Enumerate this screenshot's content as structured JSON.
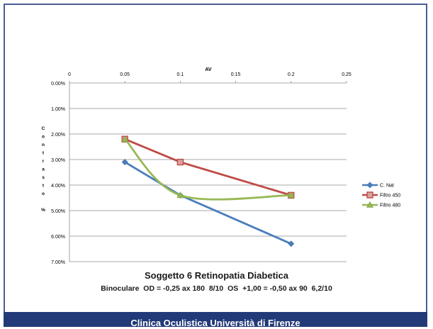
{
  "chart_data": {
    "type": "line",
    "title": "Soggetto 6  Retinopatia Diabetica",
    "subtitle": "Binoculare  OD = -0,25 ax 180  8/10  OS  +1,00 = -0,50 ax 90  6,2/10",
    "xlabel": "AV",
    "ylabel": "Contrasto %",
    "ylabel_letters": [
      "C",
      "o",
      "n",
      "t",
      "r",
      "a",
      "s",
      "t",
      "o",
      "",
      "%"
    ],
    "x_ticks": [
      "0",
      "0.05",
      "0.1",
      "0.15",
      "0.2",
      "0.25"
    ],
    "y_ticks": [
      "0.00%",
      "1.00%",
      "2.00%",
      "3.00%",
      "4.00%",
      "5.00%",
      "6.00%",
      "7.00%"
    ],
    "xlim": [
      0,
      0.25
    ],
    "ylim": [
      0,
      7
    ],
    "y_reversed": true,
    "x_axis_position": "top",
    "grid": true,
    "legend_position": "right",
    "series": [
      {
        "name": "C. Nat",
        "color": "#4a7ebb",
        "marker": "diamond",
        "smooth": false,
        "x": [
          0.05,
          0.1,
          0.2
        ],
        "y": [
          3.1,
          4.4,
          6.3
        ]
      },
      {
        "name": "Filtro 450",
        "color": "#be4b48",
        "marker": "square",
        "smooth": false,
        "x": [
          0.05,
          0.1,
          0.2
        ],
        "y": [
          2.2,
          3.1,
          4.4
        ]
      },
      {
        "name": "Filtro 480",
        "color": "#98b954",
        "marker": "triangle",
        "smooth": true,
        "x": [
          0.05,
          0.1,
          0.2
        ],
        "y": [
          2.2,
          4.4,
          4.4
        ]
      }
    ]
  },
  "footer": {
    "text": "Clinica Oculistica Università di Firenze",
    "bg_color": "#233a78"
  }
}
